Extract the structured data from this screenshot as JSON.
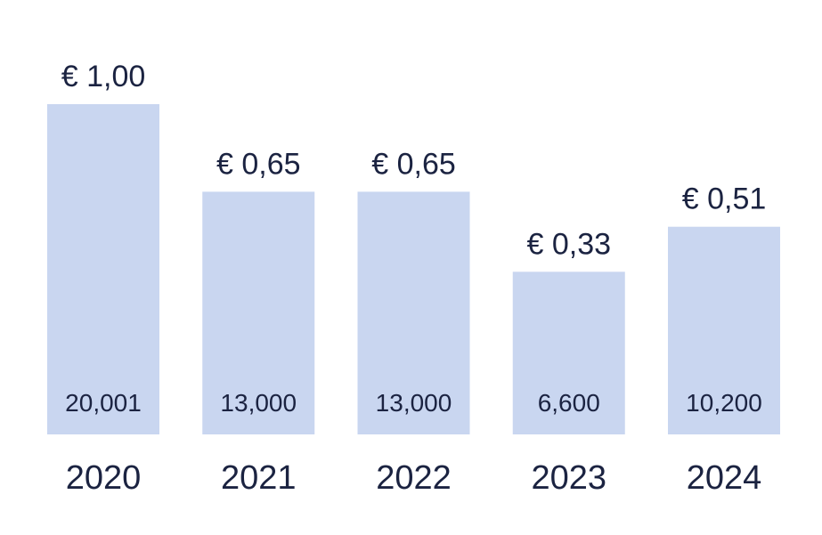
{
  "chart_data": {
    "type": "bar",
    "categories": [
      "2020",
      "2021",
      "2022",
      "2023",
      "2024"
    ],
    "values": [
      1.0,
      0.65,
      0.65,
      0.33,
      0.51
    ],
    "value_labels": [
      "€ 1,00",
      "€ 0,65",
      "€ 0,65",
      "€ 0,33",
      "€ 0,51"
    ],
    "inner_labels": [
      "20,001",
      "13,000",
      "13,000",
      "6,600",
      "10,200"
    ],
    "ylim": [
      -0.32,
      1.0
    ],
    "grid": false,
    "legend": "none",
    "colors": {
      "bar": "#c9d6f0",
      "text": "#1b2341"
    }
  }
}
